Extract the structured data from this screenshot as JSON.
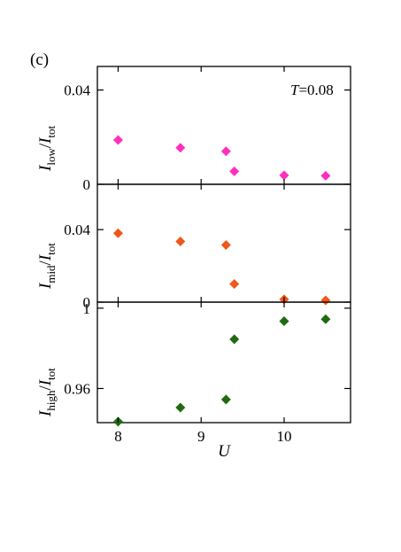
{
  "panel_label": "(c)",
  "chart_data": [
    {
      "type": "scatter",
      "annotation": "T=0.08",
      "ylabel": "I_low/I_tot",
      "ylim": [
        0,
        0.05
      ],
      "yticks": [
        0,
        0.04
      ],
      "ytick_labels": [
        "0",
        "0.04"
      ],
      "xlim": [
        7.75,
        10.8
      ],
      "marker": "diamond",
      "color": "#ff2fbe",
      "x": [
        8,
        8.75,
        9.3,
        9.4,
        10,
        10.5
      ],
      "y": [
        0.0188,
        0.0155,
        0.014,
        0.0055,
        0.0038,
        0.0036
      ]
    },
    {
      "type": "scatter",
      "ylabel": "I_mid/I_tot",
      "ylim": [
        0,
        0.065
      ],
      "yticks": [
        0,
        0.04
      ],
      "ytick_labels": [
        "0",
        "0.04"
      ],
      "xlim": [
        7.75,
        10.8
      ],
      "marker": "diamond",
      "color": "#f0561a",
      "x": [
        8,
        8.75,
        9.3,
        9.4,
        10,
        10.5
      ],
      "y": [
        0.038,
        0.0335,
        0.0315,
        0.01,
        0.0015,
        0.001
      ]
    },
    {
      "type": "scatter",
      "ylabel": "I_high/I_tot",
      "ylim": [
        0.943,
        1.003
      ],
      "yticks": [
        0.96,
        1
      ],
      "ytick_labels": [
        "0.96",
        "1"
      ],
      "xlim": [
        7.75,
        10.8
      ],
      "xticks": [
        8,
        9,
        10
      ],
      "xtick_labels": [
        "8",
        "9",
        "10"
      ],
      "xlabel": "U",
      "marker": "diamond",
      "color": "#1f6a10",
      "x": [
        8,
        8.75,
        9.3,
        9.4,
        10,
        10.5
      ],
      "y": [
        0.9435,
        0.9505,
        0.9545,
        0.9845,
        0.9935,
        0.9945
      ]
    }
  ]
}
